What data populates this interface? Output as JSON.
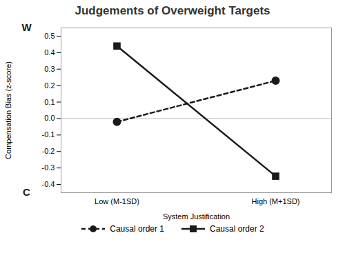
{
  "chart_data": {
    "type": "line",
    "title": "Judgements of Overweight Targets",
    "x_label": "System Justification",
    "y_label": "Compensation Bias (z-score)",
    "categories": [
      "Low (M-1SD)",
      "High (M+1SD)"
    ],
    "series": [
      {
        "name": "Causal order 1",
        "values": [
          -0.02,
          0.23
        ],
        "color": "#1a1a1a",
        "marker": "circle",
        "line_style": "dashed"
      },
      {
        "name": "Causal order 2",
        "values": [
          0.44,
          -0.35
        ],
        "color": "#1a1a1a",
        "marker": "square",
        "line_style": "solid"
      }
    ],
    "ylim": [
      -0.45,
      0.55
    ],
    "yticks": [
      -0.4,
      -0.3,
      -0.2,
      -0.1,
      {
        "value": 0,
        "label": "0.0"
      },
      0.1,
      0.2,
      0.3,
      0.4,
      0.5
    ],
    "hline": {
      "y": 0,
      "color": "#bbbbbb"
    },
    "annotations": [
      {
        "text": "W",
        "y": 0.55
      },
      {
        "text": "C",
        "y": -0.45
      }
    ],
    "grid": false,
    "legend": "bottom"
  }
}
